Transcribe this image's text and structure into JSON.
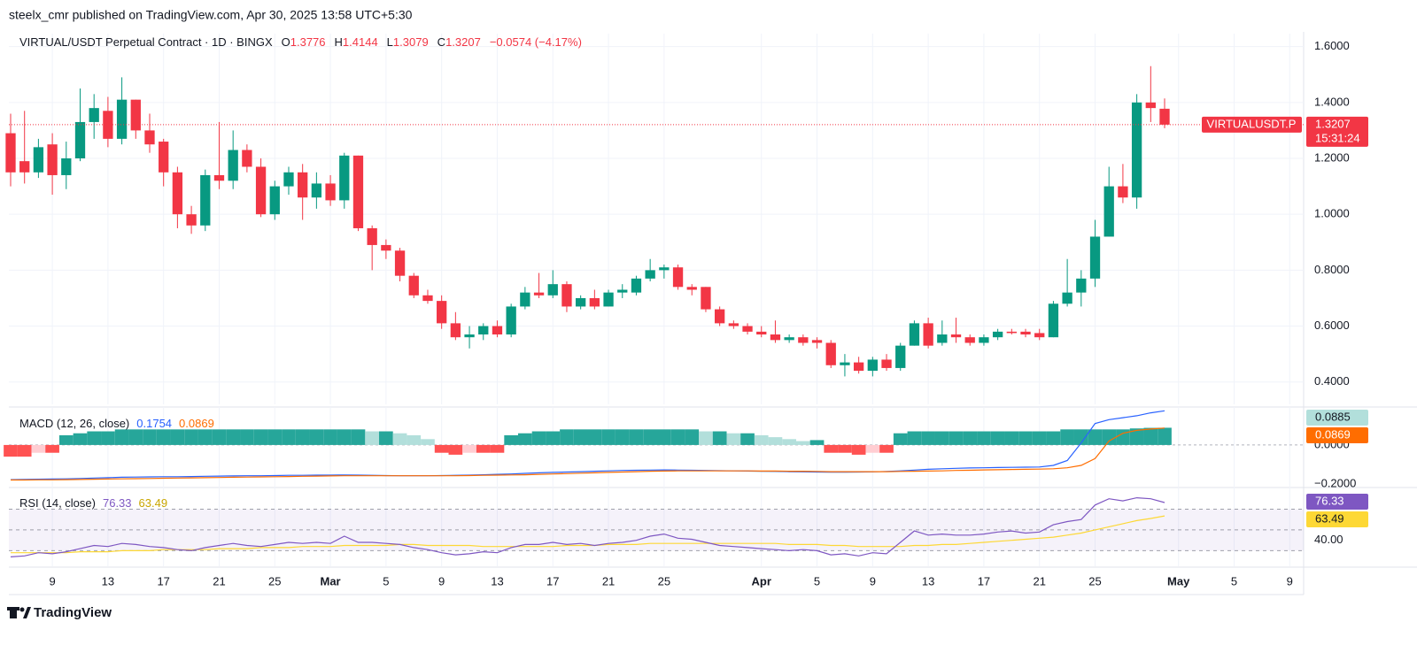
{
  "header": {
    "published": "steelx_cmr published on TradingView.com, Apr 30, 2025 13:58 UTC+5:30"
  },
  "footer": {
    "brand": "TradingView"
  },
  "chart_data": [
    {
      "type": "candlestick",
      "title": "VIRTUAL/USDT Perpetual Contract · 1D · BINGX",
      "ohlc_labels": [
        "O",
        "H",
        "L",
        "C"
      ],
      "change_label": "−0.0574 (−4.17%)",
      "symbol_badge": "VIRTUALUSDT.P",
      "countdown": "15:31:24",
      "up_color": "#089981",
      "down_color": "#f23645",
      "x": [
        "2025-02-06",
        "2025-02-07",
        "2025-02-08",
        "2025-02-09",
        "2025-02-10",
        "2025-02-11",
        "2025-02-12",
        "2025-02-13",
        "2025-02-14",
        "2025-02-15",
        "2025-02-16",
        "2025-02-17",
        "2025-02-18",
        "2025-02-19",
        "2025-02-20",
        "2025-02-21",
        "2025-02-22",
        "2025-02-23",
        "2025-02-24",
        "2025-02-25",
        "2025-02-26",
        "2025-02-27",
        "2025-02-28",
        "2025-03-01",
        "2025-03-02",
        "2025-03-03",
        "2025-03-04",
        "2025-03-05",
        "2025-03-06",
        "2025-03-07",
        "2025-03-08",
        "2025-03-09",
        "2025-03-10",
        "2025-03-11",
        "2025-03-12",
        "2025-03-13",
        "2025-03-14",
        "2025-03-15",
        "2025-03-16",
        "2025-03-17",
        "2025-03-18",
        "2025-03-19",
        "2025-03-20",
        "2025-03-21",
        "2025-03-22",
        "2025-03-23",
        "2025-03-24",
        "2025-03-25",
        "2025-03-26",
        "2025-03-27",
        "2025-03-28",
        "2025-03-29",
        "2025-03-30",
        "2025-03-31",
        "2025-04-01",
        "2025-04-02",
        "2025-04-03",
        "2025-04-04",
        "2025-04-05",
        "2025-04-06",
        "2025-04-07",
        "2025-04-08",
        "2025-04-09",
        "2025-04-10",
        "2025-04-11",
        "2025-04-12",
        "2025-04-13",
        "2025-04-14",
        "2025-04-15",
        "2025-04-16",
        "2025-04-17",
        "2025-04-18",
        "2025-04-19",
        "2025-04-20",
        "2025-04-21",
        "2025-04-22",
        "2025-04-23",
        "2025-04-24",
        "2025-04-25",
        "2025-04-26",
        "2025-04-27",
        "2025-04-28",
        "2025-04-29",
        "2025-04-30"
      ],
      "open": [
        1.29,
        1.19,
        1.15,
        1.25,
        1.14,
        1.2,
        1.33,
        1.37,
        1.27,
        1.41,
        1.3,
        1.26,
        1.15,
        1.0,
        0.96,
        1.14,
        1.12,
        1.23,
        1.17,
        1.0,
        1.1,
        1.15,
        1.06,
        1.11,
        1.05,
        1.21,
        0.95,
        0.89,
        0.87,
        0.78,
        0.71,
        0.69,
        0.61,
        0.56,
        0.57,
        0.6,
        0.57,
        0.67,
        0.72,
        0.71,
        0.75,
        0.67,
        0.7,
        0.67,
        0.72,
        0.72,
        0.77,
        0.8,
        0.81,
        0.74,
        0.74,
        0.66,
        0.61,
        0.6,
        0.58,
        0.57,
        0.55,
        0.56,
        0.55,
        0.54,
        0.46,
        0.47,
        0.44,
        0.48,
        0.45,
        0.53,
        0.61,
        0.54,
        0.57,
        0.56,
        0.54,
        0.56,
        0.58,
        0.58,
        0.575,
        0.56,
        0.68,
        0.72,
        0.77,
        0.92,
        1.1,
        1.06,
        1.4,
        1.3776
      ],
      "high": [
        1.36,
        1.37,
        1.27,
        1.29,
        1.26,
        1.45,
        1.43,
        1.42,
        1.49,
        1.41,
        1.36,
        1.27,
        1.17,
        1.03,
        1.16,
        1.33,
        1.3,
        1.25,
        1.2,
        1.12,
        1.17,
        1.18,
        1.15,
        1.14,
        1.22,
        1.21,
        0.96,
        0.91,
        0.88,
        0.79,
        0.73,
        0.71,
        0.65,
        0.6,
        0.61,
        0.62,
        0.68,
        0.74,
        0.79,
        0.8,
        0.76,
        0.71,
        0.73,
        0.73,
        0.75,
        0.78,
        0.84,
        0.82,
        0.82,
        0.75,
        0.74,
        0.67,
        0.62,
        0.61,
        0.6,
        0.62,
        0.57,
        0.57,
        0.56,
        0.55,
        0.5,
        0.49,
        0.49,
        0.5,
        0.54,
        0.62,
        0.63,
        0.62,
        0.63,
        0.57,
        0.57,
        0.59,
        0.59,
        0.59,
        0.59,
        0.69,
        0.84,
        0.8,
        0.98,
        1.17,
        1.18,
        1.43,
        1.53,
        1.4144
      ],
      "low": [
        1.1,
        1.11,
        1.13,
        1.07,
        1.09,
        1.19,
        1.27,
        1.24,
        1.25,
        1.27,
        1.22,
        1.1,
        0.95,
        0.93,
        0.94,
        1.09,
        1.09,
        1.15,
        0.99,
        0.98,
        1.07,
        0.98,
        1.02,
        1.03,
        1.02,
        0.94,
        0.8,
        0.84,
        0.76,
        0.7,
        0.68,
        0.59,
        0.55,
        0.52,
        0.55,
        0.56,
        0.56,
        0.66,
        0.7,
        0.7,
        0.65,
        0.66,
        0.66,
        0.67,
        0.7,
        0.71,
        0.76,
        0.77,
        0.73,
        0.71,
        0.65,
        0.6,
        0.59,
        0.57,
        0.56,
        0.54,
        0.54,
        0.53,
        0.52,
        0.45,
        0.42,
        0.43,
        0.42,
        0.44,
        0.44,
        0.53,
        0.52,
        0.53,
        0.54,
        0.53,
        0.53,
        0.55,
        0.57,
        0.56,
        0.55,
        0.56,
        0.67,
        0.67,
        0.74,
        0.92,
        1.04,
        1.02,
        1.33,
        1.3079
      ],
      "close": [
        1.15,
        1.15,
        1.24,
        1.14,
        1.2,
        1.33,
        1.38,
        1.27,
        1.41,
        1.3,
        1.25,
        1.15,
        1.0,
        0.96,
        1.14,
        1.12,
        1.23,
        1.17,
        1.0,
        1.1,
        1.15,
        1.06,
        1.11,
        1.05,
        1.21,
        0.95,
        0.89,
        0.87,
        0.78,
        0.71,
        0.69,
        0.61,
        0.56,
        0.57,
        0.6,
        0.57,
        0.67,
        0.72,
        0.71,
        0.75,
        0.67,
        0.7,
        0.67,
        0.72,
        0.73,
        0.77,
        0.8,
        0.81,
        0.74,
        0.73,
        0.66,
        0.61,
        0.6,
        0.58,
        0.57,
        0.55,
        0.56,
        0.54,
        0.54,
        0.46,
        0.47,
        0.44,
        0.48,
        0.45,
        0.53,
        0.61,
        0.53,
        0.57,
        0.56,
        0.54,
        0.56,
        0.58,
        0.575,
        0.57,
        0.56,
        0.68,
        0.72,
        0.77,
        0.92,
        1.1,
        1.06,
        1.4,
        1.38,
        1.3207
      ],
      "xlim": [
        "2025-02-06",
        "2025-05-10"
      ],
      "xticks": [
        {
          "value": "2025-02-09",
          "label": "9"
        },
        {
          "value": "2025-02-13",
          "label": "13"
        },
        {
          "value": "2025-02-17",
          "label": "17"
        },
        {
          "value": "2025-02-21",
          "label": "21"
        },
        {
          "value": "2025-02-25",
          "label": "25"
        },
        {
          "value": "2025-03-01",
          "label": "Mar"
        },
        {
          "value": "2025-03-05",
          "label": "5"
        },
        {
          "value": "2025-03-09",
          "label": "9"
        },
        {
          "value": "2025-03-13",
          "label": "13"
        },
        {
          "value": "2025-03-17",
          "label": "17"
        },
        {
          "value": "2025-03-21",
          "label": "21"
        },
        {
          "value": "2025-03-25",
          "label": "25"
        },
        {
          "value": "2025-04-01",
          "label": "Apr"
        },
        {
          "value": "2025-04-05",
          "label": "5"
        },
        {
          "value": "2025-04-09",
          "label": "9"
        },
        {
          "value": "2025-04-13",
          "label": "13"
        },
        {
          "value": "2025-04-17",
          "label": "17"
        },
        {
          "value": "2025-04-21",
          "label": "21"
        },
        {
          "value": "2025-04-25",
          "label": "25"
        },
        {
          "value": "2025-05-01",
          "label": "May"
        },
        {
          "value": "2025-05-05",
          "label": "5"
        },
        {
          "value": "2025-05-09",
          "label": "9"
        }
      ],
      "ylim": [
        0.32,
        1.64
      ],
      "yticks": [
        {
          "value": 0.4,
          "label": "0.4000"
        },
        {
          "value": 0.6,
          "label": "0.6000"
        },
        {
          "value": 0.8,
          "label": "0.8000"
        },
        {
          "value": 1.0,
          "label": "1.0000"
        },
        {
          "value": 1.2,
          "label": "1.2000"
        },
        {
          "value": 1.4,
          "label": "1.4000"
        },
        {
          "value": 1.6,
          "label": "1.6000"
        }
      ],
      "grid": true
    },
    {
      "type": "macd",
      "title": "MACD (12, 26, close)",
      "macd": {
        "color": "#2962ff",
        "values": [
          -0.178,
          -0.177,
          -0.176,
          -0.175,
          -0.174,
          -0.172,
          -0.17,
          -0.168,
          -0.166,
          -0.165,
          -0.164,
          -0.163,
          -0.163,
          -0.162,
          -0.161,
          -0.16,
          -0.159,
          -0.158,
          -0.158,
          -0.157,
          -0.156,
          -0.156,
          -0.155,
          -0.155,
          -0.154,
          -0.155,
          -0.156,
          -0.157,
          -0.158,
          -0.158,
          -0.158,
          -0.157,
          -0.156,
          -0.155,
          -0.153,
          -0.151,
          -0.149,
          -0.146,
          -0.143,
          -0.141,
          -0.139,
          -0.137,
          -0.135,
          -0.133,
          -0.131,
          -0.13,
          -0.129,
          -0.128,
          -0.129,
          -0.13,
          -0.131,
          -0.132,
          -0.133,
          -0.134,
          -0.135,
          -0.136,
          -0.137,
          -0.138,
          -0.139,
          -0.14,
          -0.14,
          -0.139,
          -0.138,
          -0.136,
          -0.133,
          -0.129,
          -0.125,
          -0.122,
          -0.12,
          -0.118,
          -0.117,
          -0.116,
          -0.115,
          -0.114,
          -0.113,
          -0.105,
          -0.08,
          0.01,
          0.11,
          0.13,
          0.14,
          0.15,
          0.165,
          0.1754
        ]
      },
      "signal": {
        "color": "#ff6d00",
        "values": [
          -0.18,
          -0.18,
          -0.179,
          -0.179,
          -0.178,
          -0.177,
          -0.176,
          -0.175,
          -0.174,
          -0.173,
          -0.172,
          -0.171,
          -0.17,
          -0.169,
          -0.168,
          -0.167,
          -0.166,
          -0.165,
          -0.164,
          -0.163,
          -0.162,
          -0.161,
          -0.16,
          -0.159,
          -0.158,
          -0.158,
          -0.158,
          -0.158,
          -0.158,
          -0.158,
          -0.158,
          -0.158,
          -0.158,
          -0.157,
          -0.156,
          -0.155,
          -0.154,
          -0.153,
          -0.151,
          -0.149,
          -0.147,
          -0.145,
          -0.143,
          -0.141,
          -0.139,
          -0.137,
          -0.135,
          -0.134,
          -0.133,
          -0.133,
          -0.133,
          -0.133,
          -0.133,
          -0.133,
          -0.134,
          -0.134,
          -0.135,
          -0.135,
          -0.136,
          -0.137,
          -0.137,
          -0.137,
          -0.137,
          -0.137,
          -0.136,
          -0.135,
          -0.134,
          -0.133,
          -0.131,
          -0.13,
          -0.128,
          -0.127,
          -0.126,
          -0.125,
          -0.124,
          -0.122,
          -0.117,
          -0.105,
          -0.07,
          0.02,
          0.06,
          0.075,
          0.082,
          0.0869
        ]
      },
      "histogram": {
        "colors": [
          "#26a69a",
          "#b2dfdb",
          "#ff5252",
          "#ffcdd2"
        ],
        "values": [
          -0.06,
          -0.06,
          -0.04,
          -0.04,
          0.05,
          0.06,
          0.07,
          0.07,
          0.08,
          0.08,
          0.08,
          0.08,
          0.08,
          0.08,
          0.08,
          0.08,
          0.08,
          0.08,
          0.08,
          0.08,
          0.08,
          0.08,
          0.08,
          0.08,
          0.08,
          0.08,
          0.07,
          0.07,
          0.06,
          0.05,
          0.03,
          -0.04,
          -0.05,
          -0.04,
          -0.04,
          -0.04,
          0.05,
          0.06,
          0.07,
          0.07,
          0.08,
          0.08,
          0.08,
          0.08,
          0.08,
          0.08,
          0.08,
          0.08,
          0.08,
          0.08,
          0.07,
          0.07,
          0.06,
          0.06,
          0.05,
          0.04,
          0.03,
          0.02,
          0.025,
          -0.04,
          -0.04,
          -0.05,
          -0.04,
          -0.04,
          0.06,
          0.07,
          0.07,
          0.07,
          0.07,
          0.07,
          0.07,
          0.07,
          0.07,
          0.07,
          0.07,
          0.07,
          0.08,
          0.08,
          0.08,
          0.08,
          0.08,
          0.085,
          0.088,
          0.0885
        ]
      },
      "ylim": [
        -0.214,
        0.186
      ],
      "yticks": [
        {
          "value": 0,
          "label": "0.0000"
        },
        {
          "value": -0.2,
          "label": "−0.2000"
        }
      ]
    },
    {
      "type": "rsi",
      "title": "RSI (14, close)",
      "rsi": {
        "color": "#7e57c2",
        "values": [
          24,
          25,
          28,
          27,
          29,
          32,
          35,
          34,
          37,
          36,
          34,
          33,
          31,
          30,
          33,
          35,
          37,
          35,
          34,
          36,
          38,
          37,
          38,
          37,
          44,
          38,
          38,
          37,
          36,
          33,
          31,
          28,
          26,
          27,
          29,
          28,
          33,
          36,
          36,
          38,
          36,
          37,
          35,
          37,
          38,
          40,
          44,
          46,
          42,
          41,
          38,
          35,
          34,
          33,
          32,
          31,
          30,
          31,
          30,
          26,
          27,
          25,
          28,
          27,
          38,
          49,
          45,
          46,
          45,
          45,
          46,
          48,
          49,
          47,
          48,
          55,
          58,
          60,
          74,
          80,
          78,
          81,
          80,
          76.33
        ]
      },
      "ma": {
        "color": "#fdd835",
        "values": [
          28,
          28,
          28,
          28,
          28,
          29,
          29,
          29,
          30,
          30,
          30,
          31,
          31,
          31,
          31,
          32,
          32,
          32,
          33,
          33,
          33,
          34,
          34,
          34,
          35,
          35,
          35,
          35,
          36,
          36,
          35,
          35,
          35,
          35,
          34,
          34,
          34,
          34,
          34,
          34,
          35,
          35,
          35,
          36,
          36,
          36,
          37,
          37,
          37,
          37,
          37,
          37,
          37,
          37,
          37,
          37,
          36,
          36,
          36,
          35,
          35,
          34,
          34,
          34,
          34,
          35,
          35,
          36,
          36,
          37,
          38,
          39,
          40,
          41,
          42,
          43,
          45,
          47,
          50,
          53,
          56,
          59,
          61,
          63.49
        ]
      },
      "levels": [
        70,
        50,
        30
      ],
      "ylim": [
        15,
        90
      ],
      "yticks": [
        {
          "value": 40,
          "label": "40.00"
        }
      ]
    }
  ]
}
